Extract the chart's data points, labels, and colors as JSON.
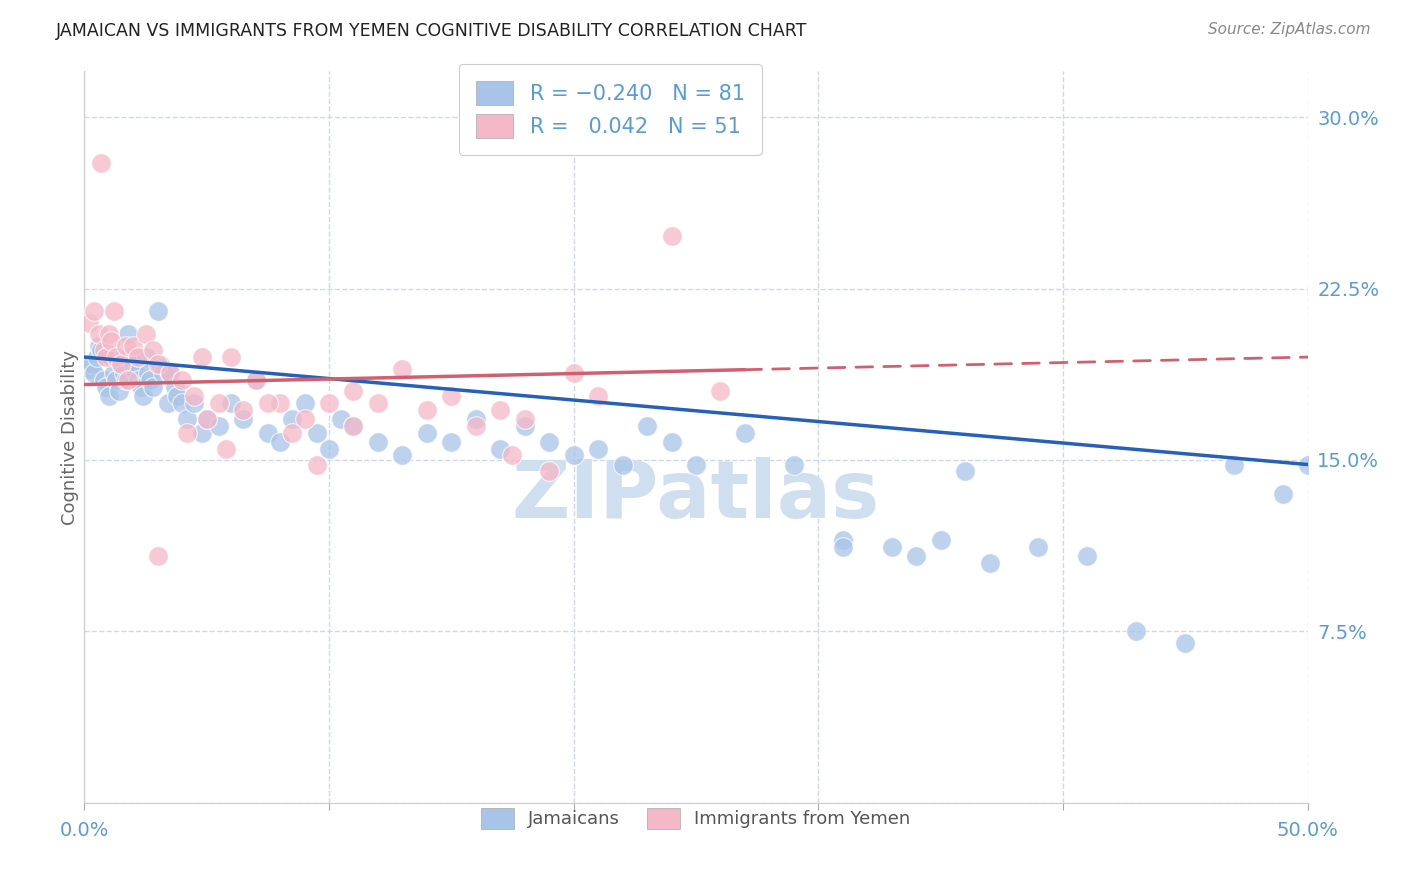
{
  "title": "JAMAICAN VS IMMIGRANTS FROM YEMEN COGNITIVE DISABILITY CORRELATION CHART",
  "source": "Source: ZipAtlas.com",
  "ylabel": "Cognitive Disability",
  "blue_color": "#a8c4e8",
  "pink_color": "#f5b8c8",
  "blue_line_color": "#2660b8",
  "pink_line_color": "#d06070",
  "title_color": "#222222",
  "axis_tick_color": "#5b9bd5",
  "grid_color": "#d0d8e8",
  "watermark_color": "#d0dff0",
  "background_color": "#ffffff",
  "legend_text_color": "#5b9bd5",
  "bottom_legend_color": "#555555",
  "xlim": [
    0.0,
    0.5
  ],
  "ylim": [
    0.0,
    0.32
  ],
  "xtick_vals": [
    0.0,
    0.5
  ],
  "xtick_labels": [
    "0.0%",
    "50.0%"
  ],
  "ytick_vals": [
    0.0,
    0.075,
    0.15,
    0.225,
    0.3
  ],
  "ytick_labels": [
    "",
    "7.5%",
    "15.0%",
    "22.5%",
    "30.0%"
  ],
  "blue_trend_x": [
    0.0,
    0.5
  ],
  "blue_trend_y": [
    0.195,
    0.148
  ],
  "pink_trend_x": [
    0.0,
    0.5
  ],
  "pink_trend_y": [
    0.183,
    0.195
  ],
  "jamaicans_x": [
    0.002,
    0.003,
    0.004,
    0.005,
    0.006,
    0.007,
    0.008,
    0.009,
    0.01,
    0.011,
    0.012,
    0.013,
    0.014,
    0.015,
    0.016,
    0.017,
    0.018,
    0.019,
    0.02,
    0.021,
    0.022,
    0.023,
    0.024,
    0.025,
    0.026,
    0.027,
    0.028,
    0.03,
    0.031,
    0.032,
    0.034,
    0.035,
    0.037,
    0.038,
    0.04,
    0.042,
    0.045,
    0.048,
    0.05,
    0.055,
    0.06,
    0.065,
    0.07,
    0.075,
    0.08,
    0.085,
    0.09,
    0.095,
    0.1,
    0.105,
    0.11,
    0.12,
    0.13,
    0.14,
    0.15,
    0.16,
    0.17,
    0.18,
    0.19,
    0.2,
    0.21,
    0.22,
    0.23,
    0.24,
    0.25,
    0.27,
    0.29,
    0.31,
    0.33,
    0.35,
    0.37,
    0.39,
    0.41,
    0.43,
    0.45,
    0.47,
    0.49,
    0.5,
    0.31,
    0.34,
    0.36
  ],
  "jamaicans_y": [
    0.19,
    0.192,
    0.188,
    0.195,
    0.2,
    0.198,
    0.185,
    0.182,
    0.178,
    0.195,
    0.188,
    0.185,
    0.18,
    0.192,
    0.188,
    0.185,
    0.205,
    0.195,
    0.192,
    0.188,
    0.185,
    0.182,
    0.178,
    0.195,
    0.188,
    0.185,
    0.182,
    0.215,
    0.192,
    0.188,
    0.175,
    0.188,
    0.182,
    0.178,
    0.175,
    0.168,
    0.175,
    0.162,
    0.168,
    0.165,
    0.175,
    0.168,
    0.185,
    0.162,
    0.158,
    0.168,
    0.175,
    0.162,
    0.155,
    0.168,
    0.165,
    0.158,
    0.152,
    0.162,
    0.158,
    0.168,
    0.155,
    0.165,
    0.158,
    0.152,
    0.155,
    0.148,
    0.165,
    0.158,
    0.148,
    0.162,
    0.148,
    0.115,
    0.112,
    0.115,
    0.105,
    0.112,
    0.108,
    0.075,
    0.07,
    0.148,
    0.135,
    0.148,
    0.112,
    0.108,
    0.145
  ],
  "yemen_x": [
    0.002,
    0.004,
    0.006,
    0.007,
    0.008,
    0.009,
    0.01,
    0.011,
    0.012,
    0.013,
    0.015,
    0.017,
    0.018,
    0.02,
    0.022,
    0.025,
    0.028,
    0.03,
    0.035,
    0.04,
    0.045,
    0.048,
    0.055,
    0.06,
    0.065,
    0.07,
    0.08,
    0.09,
    0.1,
    0.11,
    0.12,
    0.13,
    0.15,
    0.16,
    0.17,
    0.18,
    0.19,
    0.2,
    0.24,
    0.26,
    0.03,
    0.042,
    0.05,
    0.058,
    0.075,
    0.085,
    0.095,
    0.11,
    0.14,
    0.175,
    0.21
  ],
  "yemen_y": [
    0.21,
    0.215,
    0.205,
    0.28,
    0.198,
    0.195,
    0.205,
    0.202,
    0.215,
    0.195,
    0.192,
    0.2,
    0.185,
    0.2,
    0.195,
    0.205,
    0.198,
    0.192,
    0.188,
    0.185,
    0.178,
    0.195,
    0.175,
    0.195,
    0.172,
    0.185,
    0.175,
    0.168,
    0.175,
    0.18,
    0.175,
    0.19,
    0.178,
    0.165,
    0.172,
    0.168,
    0.145,
    0.188,
    0.248,
    0.18,
    0.108,
    0.162,
    0.168,
    0.155,
    0.175,
    0.162,
    0.148,
    0.165,
    0.172,
    0.152,
    0.178
  ]
}
